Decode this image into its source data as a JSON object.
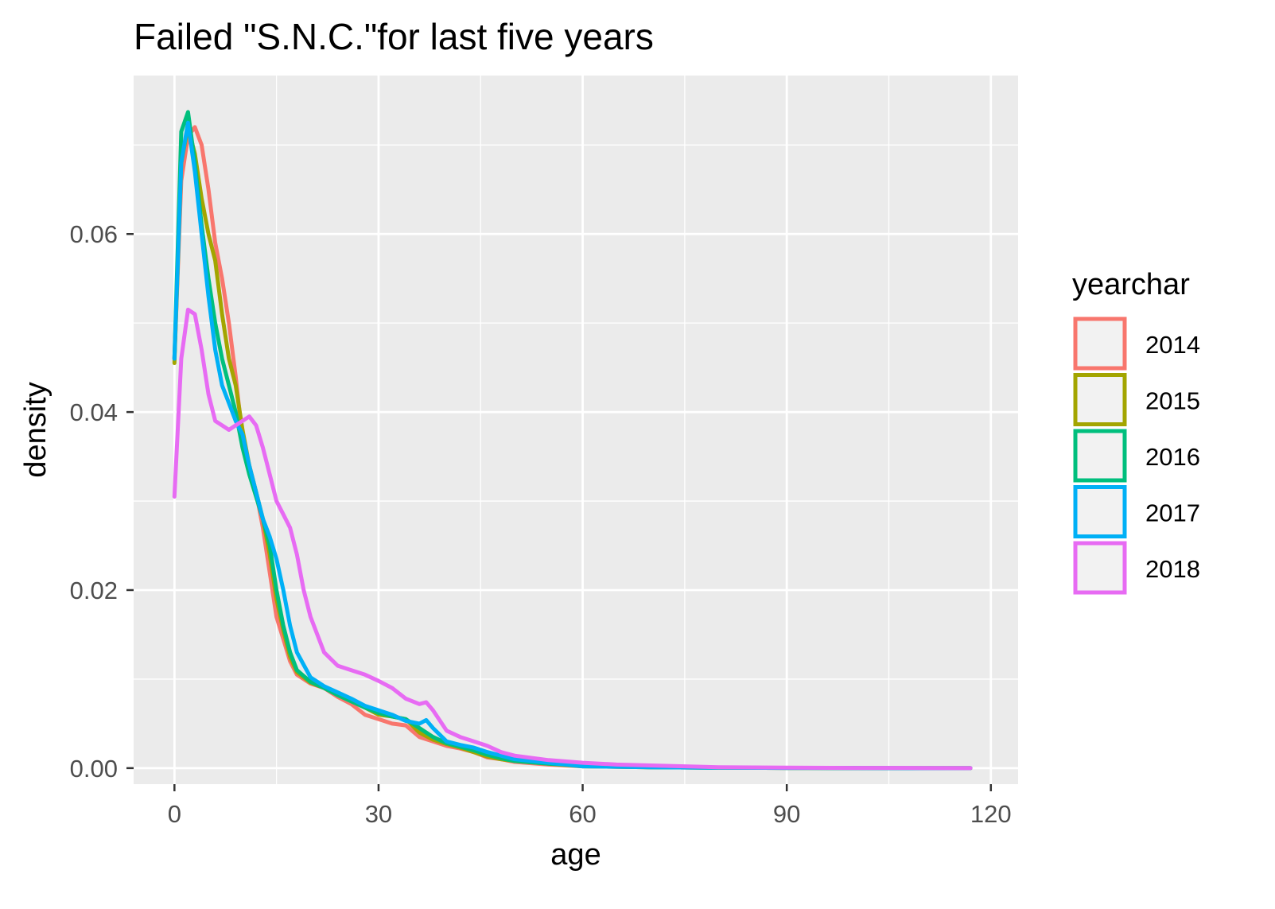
{
  "chart_data": {
    "type": "line",
    "title": "Failed \"S.N.C.\"for last five years",
    "xlabel": "age",
    "ylabel": "density",
    "xlim": [
      -6,
      124
    ],
    "ylim": [
      -0.0018,
      0.0778
    ],
    "x_ticks": [
      0,
      30,
      60,
      90,
      120
    ],
    "x_tick_labels": [
      "0",
      "30",
      "60",
      "90",
      "120"
    ],
    "x_minor_ticks": [
      15,
      45,
      75,
      105
    ],
    "y_ticks": [
      0.0,
      0.02,
      0.04,
      0.06
    ],
    "y_tick_labels": [
      "0.00",
      "0.02",
      "0.04",
      "0.06"
    ],
    "y_minor_ticks": [
      0.01,
      0.03,
      0.05,
      0.07
    ],
    "grid": true,
    "background": "#EBEBEB",
    "legend": {
      "title": "yearchar",
      "placement": "right"
    },
    "series": [
      {
        "name": "2014",
        "color": "#F8766D",
        "x": [
          0,
          1,
          2,
          3,
          4,
          5,
          6,
          7,
          8,
          9,
          10,
          11,
          12,
          13,
          14,
          15,
          16,
          17,
          18,
          20,
          22,
          24,
          26,
          28,
          30,
          32,
          34,
          36,
          38,
          40,
          42,
          44,
          46,
          48,
          50,
          55,
          60,
          70,
          80,
          90,
          100,
          110,
          117
        ],
        "y": [
          0.046,
          0.066,
          0.071,
          0.072,
          0.07,
          0.065,
          0.059,
          0.055,
          0.05,
          0.044,
          0.037,
          0.034,
          0.031,
          0.027,
          0.022,
          0.017,
          0.0145,
          0.012,
          0.0105,
          0.0095,
          0.009,
          0.008,
          0.0072,
          0.006,
          0.0055,
          0.005,
          0.0048,
          0.0035,
          0.003,
          0.0025,
          0.0022,
          0.0018,
          0.0012,
          0.001,
          0.0007,
          0.0004,
          0.0002,
          0.0001,
          5e-05,
          2e-05,
          1e-05,
          0.0,
          0.0
        ]
      },
      {
        "name": "2015",
        "color": "#A3A500",
        "x": [
          0,
          1,
          2,
          3,
          4,
          5,
          6,
          7,
          8,
          9,
          10,
          11,
          12,
          13,
          14,
          15,
          16,
          17,
          18,
          20,
          22,
          24,
          26,
          28,
          30,
          32,
          34,
          36,
          38,
          40,
          42,
          44,
          46,
          48,
          50,
          55,
          60,
          70,
          80,
          90,
          100,
          110,
          117
        ],
        "y": [
          0.0455,
          0.068,
          0.072,
          0.069,
          0.064,
          0.06,
          0.057,
          0.051,
          0.046,
          0.043,
          0.038,
          0.034,
          0.031,
          0.028,
          0.024,
          0.019,
          0.0155,
          0.0125,
          0.0108,
          0.0096,
          0.009,
          0.0082,
          0.0075,
          0.0068,
          0.006,
          0.0058,
          0.0055,
          0.004,
          0.0032,
          0.0027,
          0.0023,
          0.0018,
          0.0013,
          0.001,
          0.0008,
          0.0005,
          0.0002,
          0.0001,
          5e-05,
          2e-05,
          1e-05,
          0.0,
          0.0
        ]
      },
      {
        "name": "2016",
        "color": "#00BF7D",
        "x": [
          0,
          1,
          2,
          3,
          4,
          5,
          6,
          7,
          8,
          9,
          10,
          11,
          12,
          13,
          14,
          15,
          16,
          17,
          18,
          20,
          22,
          24,
          26,
          28,
          30,
          32,
          34,
          36,
          38,
          40,
          42,
          44,
          46,
          48,
          50,
          55,
          60,
          70,
          80,
          90,
          100,
          110,
          117
        ],
        "y": [
          0.046,
          0.0715,
          0.0737,
          0.068,
          0.061,
          0.055,
          0.05,
          0.046,
          0.043,
          0.04,
          0.036,
          0.033,
          0.0305,
          0.028,
          0.025,
          0.02,
          0.016,
          0.013,
          0.011,
          0.0097,
          0.009,
          0.0082,
          0.0075,
          0.0068,
          0.0062,
          0.0058,
          0.0055,
          0.0045,
          0.0035,
          0.0028,
          0.0024,
          0.002,
          0.0015,
          0.0011,
          0.0008,
          0.0005,
          0.0003,
          0.0001,
          5e-05,
          2e-05,
          1e-05,
          0.0,
          0.0
        ]
      },
      {
        "name": "2017",
        "color": "#00B0F6",
        "x": [
          0,
          1,
          2,
          3,
          4,
          5,
          6,
          7,
          8,
          9,
          10,
          11,
          12,
          13,
          14,
          15,
          16,
          17,
          18,
          20,
          22,
          24,
          26,
          28,
          30,
          32,
          34,
          36,
          37,
          38,
          40,
          42,
          44,
          46,
          48,
          50,
          55,
          60,
          70,
          80,
          90,
          100,
          110,
          117
        ],
        "y": [
          0.046,
          0.068,
          0.0725,
          0.067,
          0.06,
          0.053,
          0.047,
          0.043,
          0.041,
          0.039,
          0.0375,
          0.034,
          0.031,
          0.028,
          0.026,
          0.0235,
          0.02,
          0.016,
          0.013,
          0.0102,
          0.0092,
          0.0085,
          0.0078,
          0.007,
          0.0065,
          0.006,
          0.0053,
          0.005,
          0.0054,
          0.0045,
          0.003,
          0.0026,
          0.0023,
          0.0018,
          0.0014,
          0.001,
          0.0006,
          0.0002,
          0.0001,
          5e-05,
          2e-05,
          1e-05,
          0.0,
          0.0
        ]
      },
      {
        "name": "2018",
        "color": "#E76BF3",
        "x": [
          0,
          1,
          2,
          3,
          4,
          5,
          6,
          7,
          8,
          9,
          10,
          11,
          12,
          13,
          14,
          15,
          16,
          17,
          18,
          19,
          20,
          22,
          24,
          26,
          28,
          30,
          32,
          34,
          36,
          37,
          38,
          40,
          42,
          44,
          46,
          48,
          50,
          55,
          60,
          65,
          70,
          80,
          90,
          100,
          110,
          117
        ],
        "y": [
          0.0305,
          0.046,
          0.0515,
          0.051,
          0.047,
          0.042,
          0.039,
          0.0385,
          0.038,
          0.0385,
          0.039,
          0.0395,
          0.0385,
          0.036,
          0.033,
          0.03,
          0.0285,
          0.027,
          0.024,
          0.02,
          0.017,
          0.013,
          0.0115,
          0.011,
          0.0105,
          0.0098,
          0.009,
          0.0078,
          0.0072,
          0.0074,
          0.0065,
          0.0042,
          0.0035,
          0.003,
          0.0025,
          0.0018,
          0.0014,
          0.0009,
          0.0006,
          0.0004,
          0.0003,
          0.0001,
          5e-05,
          2e-05,
          1e-05,
          0.0
        ]
      }
    ]
  }
}
